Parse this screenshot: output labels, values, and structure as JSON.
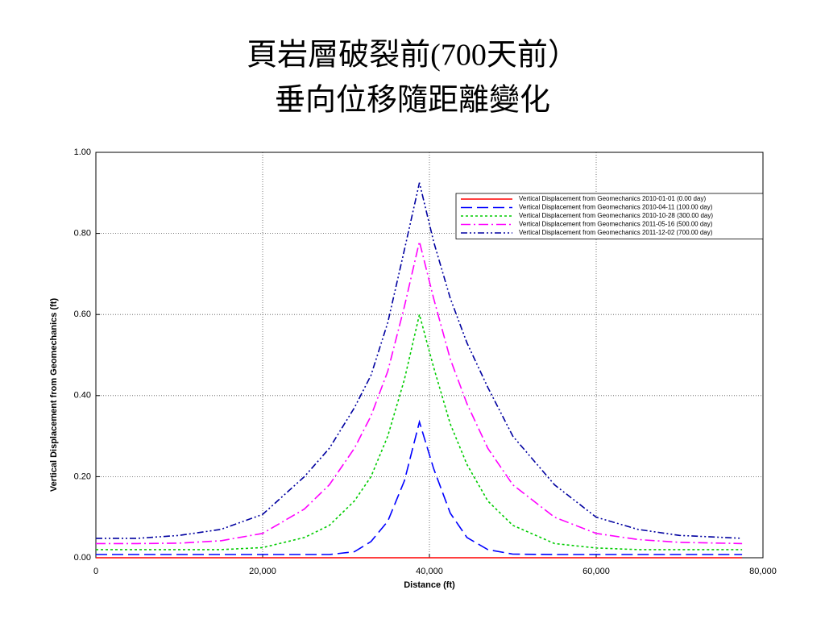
{
  "chart_data": {
    "type": "line",
    "title": "頁岩層破裂前(700天前）",
    "subtitle": "垂向位移隨距離變化",
    "x_label": "Distance (ft)",
    "y_label": "Vertical Displacement from Geomechanics (ft)",
    "x": [
      0,
      5000,
      10000,
      15000,
      20000,
      25000,
      28000,
      31000,
      33000,
      35000,
      37000,
      38800,
      40500,
      42500,
      44500,
      47000,
      50000,
      55000,
      60000,
      65000,
      70000,
      77500
    ],
    "series": [
      {
        "name": "Vertical Displacement from Geomechanics 2010-01-01 (0.00 day)",
        "color": "#ff0000",
        "dash": "",
        "values": [
          0,
          0,
          0,
          0,
          0,
          0,
          0,
          0,
          0,
          0,
          0,
          0,
          0,
          0,
          0,
          0,
          0,
          0,
          0,
          0,
          0,
          0
        ]
      },
      {
        "name": "Vertical Displacement from Geomechanics 2010-04-11 (100.00 day)",
        "color": "#0000ff",
        "dash": "14,6",
        "values": [
          0.008,
          0.008,
          0.008,
          0.008,
          0.008,
          0.008,
          0.008,
          0.015,
          0.04,
          0.09,
          0.19,
          0.335,
          0.22,
          0.11,
          0.05,
          0.02,
          0.009,
          0.008,
          0.008,
          0.008,
          0.008,
          0.008
        ]
      },
      {
        "name": "Vertical Displacement from Geomechanics 2010-10-28 (300.00 day)",
        "color": "#00cc00",
        "dash": "3,3",
        "values": [
          0.02,
          0.02,
          0.02,
          0.02,
          0.025,
          0.05,
          0.08,
          0.14,
          0.2,
          0.3,
          0.44,
          0.6,
          0.47,
          0.33,
          0.23,
          0.14,
          0.08,
          0.035,
          0.024,
          0.02,
          0.02,
          0.02
        ]
      },
      {
        "name": "Vertical Displacement from Geomechanics 2011-05-16 (500.00 day)",
        "color": "#ff00ff",
        "dash": "12,4,2,4",
        "values": [
          0.035,
          0.035,
          0.036,
          0.042,
          0.06,
          0.12,
          0.18,
          0.27,
          0.35,
          0.46,
          0.62,
          0.78,
          0.64,
          0.49,
          0.38,
          0.27,
          0.18,
          0.1,
          0.06,
          0.045,
          0.038,
          0.035
        ]
      },
      {
        "name": "Vertical Displacement from Geomechanics 2011-12-02 (700.00 day)",
        "color": "#0000a0",
        "dash": "8,3,2,3,2,3",
        "values": [
          0.048,
          0.048,
          0.055,
          0.07,
          0.107,
          0.2,
          0.27,
          0.37,
          0.45,
          0.58,
          0.76,
          0.925,
          0.78,
          0.64,
          0.53,
          0.42,
          0.3,
          0.18,
          0.1,
          0.07,
          0.055,
          0.048
        ]
      }
    ],
    "xlim": [
      0,
      80000
    ],
    "xticks": [
      0,
      {
        "value": 20000,
        "label": "20,000"
      },
      {
        "value": 40000,
        "label": "40,000"
      },
      {
        "value": 60000,
        "label": "60,000"
      },
      {
        "value": 80000,
        "label": "80,000"
      }
    ],
    "ylim": [
      0,
      1
    ],
    "yticks": [
      {
        "value": 0,
        "label": "0.00"
      },
      {
        "value": 0.2,
        "label": "0.20"
      },
      {
        "value": 0.4,
        "label": "0.40"
      },
      {
        "value": 0.6,
        "label": "0.60"
      },
      {
        "value": 0.8,
        "label": "0.80"
      },
      {
        "value": 1,
        "label": "1.00"
      }
    ],
    "grid": true,
    "legend": "upper-right"
  }
}
